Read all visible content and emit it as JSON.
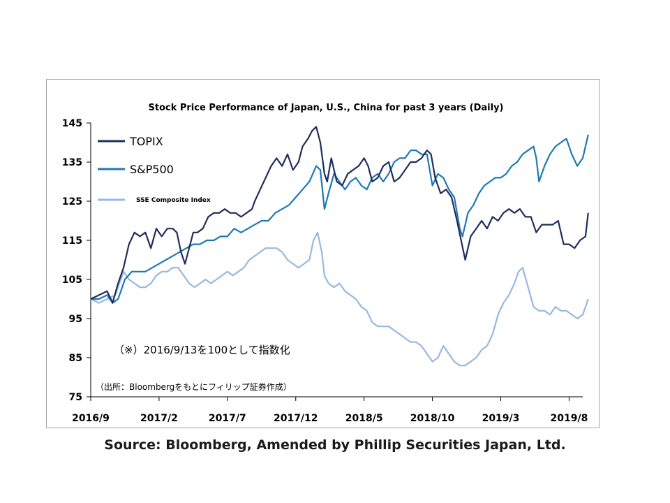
{
  "chart_data": {
    "type": "line",
    "title": "Stock Price Performance of Japan, U.S., China for past 3 years (Daily)",
    "ylim": [
      75,
      145
    ],
    "yticks": [
      75,
      85,
      95,
      105,
      115,
      125,
      135,
      145
    ],
    "xlim": [
      0,
      36
    ],
    "xticks": [
      {
        "label": "2016/9",
        "x": 0
      },
      {
        "label": "2017/2",
        "x": 5
      },
      {
        "label": "2017/7",
        "x": 10
      },
      {
        "label": "2017/12",
        "x": 15
      },
      {
        "label": "2018/5",
        "x": 20
      },
      {
        "label": "2018/10",
        "x": 25
      },
      {
        "label": "2019/3",
        "x": 30
      },
      {
        "label": "2019/8",
        "x": 35
      }
    ],
    "grid": false,
    "legend_position": "top-left",
    "series": [
      {
        "name": "TOPIX",
        "color": "#1f2d5c",
        "points": [
          [
            0,
            100
          ],
          [
            0.6,
            101
          ],
          [
            1.2,
            102
          ],
          [
            1.6,
            99
          ],
          [
            2,
            104
          ],
          [
            2.4,
            108
          ],
          [
            2.8,
            114
          ],
          [
            3.2,
            117
          ],
          [
            3.6,
            116
          ],
          [
            4,
            117
          ],
          [
            4.4,
            113
          ],
          [
            4.8,
            118
          ],
          [
            5.2,
            116
          ],
          [
            5.6,
            118
          ],
          [
            6,
            118
          ],
          [
            6.3,
            117
          ],
          [
            6.6,
            112
          ],
          [
            6.9,
            109
          ],
          [
            7.2,
            113
          ],
          [
            7.5,
            117
          ],
          [
            7.8,
            117
          ],
          [
            8.2,
            118
          ],
          [
            8.6,
            121
          ],
          [
            9,
            122
          ],
          [
            9.4,
            122
          ],
          [
            9.8,
            123
          ],
          [
            10.2,
            122
          ],
          [
            10.6,
            122
          ],
          [
            11,
            121
          ],
          [
            11.4,
            122
          ],
          [
            11.8,
            123
          ],
          [
            12,
            125
          ],
          [
            12.4,
            128
          ],
          [
            12.8,
            131
          ],
          [
            13.2,
            134
          ],
          [
            13.6,
            136
          ],
          [
            14,
            134
          ],
          [
            14.4,
            137
          ],
          [
            14.8,
            133
          ],
          [
            15.2,
            135
          ],
          [
            15.5,
            139
          ],
          [
            15.9,
            141
          ],
          [
            16.2,
            143
          ],
          [
            16.5,
            144
          ],
          [
            16.8,
            140
          ],
          [
            17.1,
            132
          ],
          [
            17.3,
            130
          ],
          [
            17.6,
            136
          ],
          [
            18,
            130
          ],
          [
            18.4,
            129
          ],
          [
            18.8,
            132
          ],
          [
            19.2,
            133
          ],
          [
            19.6,
            134
          ],
          [
            20,
            136
          ],
          [
            20.3,
            134
          ],
          [
            20.6,
            130
          ],
          [
            21,
            131
          ],
          [
            21.4,
            134
          ],
          [
            21.8,
            135
          ],
          [
            22.2,
            130
          ],
          [
            22.6,
            131
          ],
          [
            23,
            133
          ],
          [
            23.4,
            135
          ],
          [
            23.8,
            135
          ],
          [
            24.2,
            136
          ],
          [
            24.6,
            138
          ],
          [
            24.9,
            137
          ],
          [
            25.2,
            131
          ],
          [
            25.6,
            127
          ],
          [
            26,
            128
          ],
          [
            26.4,
            126
          ],
          [
            26.8,
            120
          ],
          [
            27.1,
            115
          ],
          [
            27.4,
            110
          ],
          [
            27.8,
            116
          ],
          [
            28.2,
            118
          ],
          [
            28.6,
            120
          ],
          [
            29,
            118
          ],
          [
            29.4,
            121
          ],
          [
            29.8,
            120
          ],
          [
            30.2,
            122
          ],
          [
            30.6,
            123
          ],
          [
            31,
            122
          ],
          [
            31.4,
            123
          ],
          [
            31.8,
            121
          ],
          [
            32.2,
            121
          ],
          [
            32.6,
            117
          ],
          [
            33,
            119
          ],
          [
            33.4,
            119
          ],
          [
            33.8,
            119
          ],
          [
            34.2,
            120
          ],
          [
            34.6,
            114
          ],
          [
            35,
            114
          ],
          [
            35.4,
            113
          ],
          [
            35.8,
            115
          ],
          [
            36.2,
            116
          ],
          [
            36.4,
            122
          ]
        ]
      },
      {
        "name": "S&P500",
        "color": "#1f78b4",
        "points": [
          [
            0,
            100
          ],
          [
            0.6,
            100
          ],
          [
            1.2,
            101
          ],
          [
            1.6,
            99
          ],
          [
            2,
            100
          ],
          [
            2.5,
            105
          ],
          [
            3,
            107
          ],
          [
            3.5,
            107
          ],
          [
            4,
            107
          ],
          [
            4.5,
            108
          ],
          [
            5,
            109
          ],
          [
            5.5,
            110
          ],
          [
            6,
            111
          ],
          [
            6.5,
            112
          ],
          [
            7,
            113
          ],
          [
            7.5,
            114
          ],
          [
            8,
            114
          ],
          [
            8.5,
            115
          ],
          [
            9,
            115
          ],
          [
            9.5,
            116
          ],
          [
            10,
            116
          ],
          [
            10.5,
            118
          ],
          [
            11,
            117
          ],
          [
            11.5,
            118
          ],
          [
            12,
            119
          ],
          [
            12.5,
            120
          ],
          [
            13,
            120
          ],
          [
            13.5,
            122
          ],
          [
            14,
            123
          ],
          [
            14.5,
            124
          ],
          [
            15,
            126
          ],
          [
            15.5,
            128
          ],
          [
            16,
            130
          ],
          [
            16.5,
            134
          ],
          [
            16.8,
            133
          ],
          [
            17.1,
            123
          ],
          [
            17.4,
            127
          ],
          [
            17.8,
            132
          ],
          [
            18.2,
            130
          ],
          [
            18.6,
            128
          ],
          [
            19,
            130
          ],
          [
            19.4,
            131
          ],
          [
            19.8,
            129
          ],
          [
            20.2,
            128
          ],
          [
            20.6,
            131
          ],
          [
            21,
            132
          ],
          [
            21.4,
            130
          ],
          [
            21.8,
            132
          ],
          [
            22.2,
            135
          ],
          [
            22.6,
            136
          ],
          [
            23,
            136
          ],
          [
            23.4,
            138
          ],
          [
            23.8,
            138
          ],
          [
            24.2,
            137
          ],
          [
            24.6,
            137
          ],
          [
            25,
            129
          ],
          [
            25.4,
            132
          ],
          [
            25.8,
            131
          ],
          [
            26.2,
            128
          ],
          [
            26.6,
            126
          ],
          [
            27,
            118
          ],
          [
            27.2,
            116
          ],
          [
            27.6,
            122
          ],
          [
            28,
            124
          ],
          [
            28.4,
            127
          ],
          [
            28.8,
            129
          ],
          [
            29.2,
            130
          ],
          [
            29.6,
            131
          ],
          [
            30,
            131
          ],
          [
            30.4,
            132
          ],
          [
            30.8,
            134
          ],
          [
            31.2,
            135
          ],
          [
            31.6,
            137
          ],
          [
            32,
            138
          ],
          [
            32.4,
            139
          ],
          [
            32.6,
            136
          ],
          [
            32.8,
            130
          ],
          [
            33.2,
            134
          ],
          [
            33.6,
            137
          ],
          [
            34,
            139
          ],
          [
            34.4,
            140
          ],
          [
            34.8,
            141
          ],
          [
            35.2,
            137
          ],
          [
            35.6,
            134
          ],
          [
            36,
            136
          ],
          [
            36.4,
            142
          ]
        ]
      },
      {
        "name": "SSE Composite Index",
        "color": "#97b8e0",
        "points": [
          [
            0,
            100
          ],
          [
            0.6,
            99
          ],
          [
            1.2,
            100
          ],
          [
            1.8,
            101
          ],
          [
            2.4,
            107
          ],
          [
            2.8,
            105
          ],
          [
            3.2,
            104
          ],
          [
            3.6,
            103
          ],
          [
            4,
            103
          ],
          [
            4.4,
            104
          ],
          [
            4.8,
            106
          ],
          [
            5.2,
            107
          ],
          [
            5.6,
            107
          ],
          [
            6,
            108
          ],
          [
            6.4,
            108
          ],
          [
            6.8,
            106
          ],
          [
            7.2,
            104
          ],
          [
            7.6,
            103
          ],
          [
            8,
            104
          ],
          [
            8.4,
            105
          ],
          [
            8.8,
            104
          ],
          [
            9.2,
            105
          ],
          [
            9.6,
            106
          ],
          [
            10,
            107
          ],
          [
            10.4,
            106
          ],
          [
            10.8,
            107
          ],
          [
            11.2,
            108
          ],
          [
            11.6,
            110
          ],
          [
            12,
            111
          ],
          [
            12.4,
            112
          ],
          [
            12.8,
            113
          ],
          [
            13.2,
            113
          ],
          [
            13.6,
            113
          ],
          [
            14,
            112
          ],
          [
            14.4,
            110
          ],
          [
            14.8,
            109
          ],
          [
            15.2,
            108
          ],
          [
            15.6,
            109
          ],
          [
            16,
            110
          ],
          [
            16.3,
            115
          ],
          [
            16.6,
            117
          ],
          [
            16.9,
            112
          ],
          [
            17.1,
            106
          ],
          [
            17.4,
            104
          ],
          [
            17.8,
            103
          ],
          [
            18.2,
            104
          ],
          [
            18.6,
            102
          ],
          [
            19,
            101
          ],
          [
            19.4,
            100
          ],
          [
            19.8,
            98
          ],
          [
            20.2,
            97
          ],
          [
            20.6,
            94
          ],
          [
            21,
            93
          ],
          [
            21.4,
            93
          ],
          [
            21.8,
            93
          ],
          [
            22.2,
            92
          ],
          [
            22.6,
            91
          ],
          [
            23,
            90
          ],
          [
            23.4,
            89
          ],
          [
            23.8,
            89
          ],
          [
            24.2,
            88
          ],
          [
            24.6,
            86
          ],
          [
            25,
            84
          ],
          [
            25.4,
            85
          ],
          [
            25.8,
            88
          ],
          [
            26.2,
            86
          ],
          [
            26.6,
            84
          ],
          [
            27,
            83
          ],
          [
            27.4,
            83
          ],
          [
            27.8,
            84
          ],
          [
            28.2,
            85
          ],
          [
            28.6,
            87
          ],
          [
            29,
            88
          ],
          [
            29.4,
            91
          ],
          [
            29.8,
            96
          ],
          [
            30.2,
            99
          ],
          [
            30.6,
            101
          ],
          [
            31,
            104
          ],
          [
            31.3,
            107
          ],
          [
            31.6,
            108
          ],
          [
            32,
            103
          ],
          [
            32.4,
            98
          ],
          [
            32.8,
            97
          ],
          [
            33.2,
            97
          ],
          [
            33.6,
            96
          ],
          [
            34,
            98
          ],
          [
            34.4,
            97
          ],
          [
            34.8,
            97
          ],
          [
            35.2,
            96
          ],
          [
            35.6,
            95
          ],
          [
            36,
            96
          ],
          [
            36.4,
            100
          ]
        ]
      }
    ],
    "annotations": [
      "（※）2016/9/13を100として指数化",
      "（出所：Bloombergをもとにフィリップ証券作成）"
    ]
  },
  "source": "Source: Bloomberg, Amended by Phillip Securities Japan, Ltd."
}
